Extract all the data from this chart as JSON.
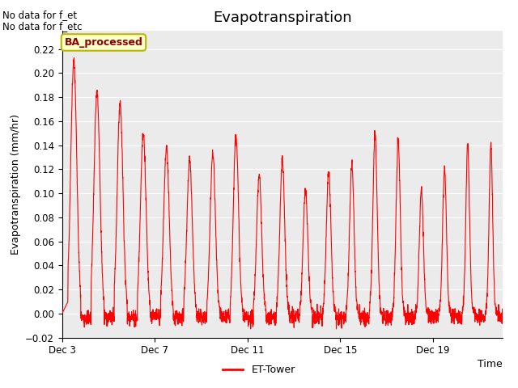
{
  "title": "Evapotranspiration",
  "ylabel": "Evapotranspiration (mm/hr)",
  "xlabel": "Time",
  "ylim": [
    -0.02,
    0.235
  ],
  "yticks": [
    -0.02,
    0.0,
    0.02,
    0.04,
    0.06,
    0.08,
    0.1,
    0.12,
    0.14,
    0.16,
    0.18,
    0.2,
    0.22
  ],
  "line_color": "#ff0000",
  "line_width": 0.8,
  "bg_color": "#ebebeb",
  "fig_bg_color": "#ffffff",
  "no_data_text1": "No data for f_et",
  "no_data_text2": "No data for f_etc",
  "ba_box_label": "BA_processed",
  "legend_label": "ET-Tower",
  "x_tick_labels": [
    "Dec 3",
    "Dec 7",
    "Dec 11",
    "Dec 15",
    "Dec 19"
  ],
  "x_tick_positions": [
    0,
    4,
    8,
    12,
    16
  ],
  "xlim": [
    0,
    19
  ],
  "peak_vals": [
    0.21,
    0.185,
    0.175,
    0.15,
    0.138,
    0.128,
    0.133,
    0.15,
    0.115,
    0.128,
    0.104,
    0.119,
    0.125,
    0.15,
    0.145,
    0.103,
    0.12,
    0.14,
    0.14
  ],
  "comment": "Dec 3=x0, Dec 7=x4, Dec 11=x8, Dec 15=x12, Dec 19=x16"
}
